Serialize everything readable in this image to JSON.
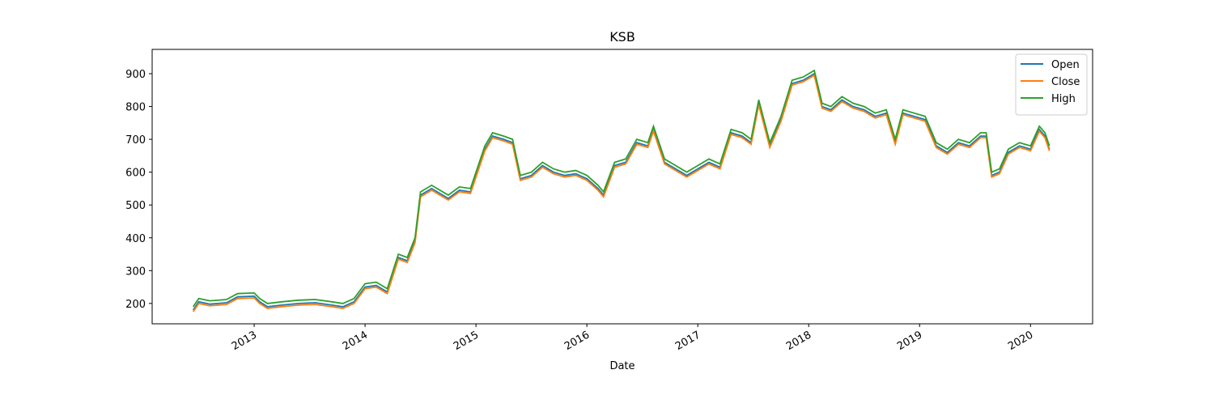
{
  "chart_data": {
    "type": "line",
    "title": "KSB",
    "xlabel": "Date",
    "x": [
      2012.45,
      2012.5,
      2012.6,
      2012.75,
      2012.85,
      2013.0,
      2013.05,
      2013.12,
      2013.25,
      2013.4,
      2013.55,
      2013.7,
      2013.8,
      2013.9,
      2014.0,
      2014.1,
      2014.2,
      2014.3,
      2014.38,
      2014.45,
      2014.5,
      2014.6,
      2014.75,
      2014.85,
      2014.95,
      2015.02,
      2015.08,
      2015.15,
      2015.25,
      2015.33,
      2015.4,
      2015.5,
      2015.6,
      2015.7,
      2015.8,
      2015.9,
      2016.0,
      2016.1,
      2016.15,
      2016.25,
      2016.35,
      2016.45,
      2016.55,
      2016.6,
      2016.7,
      2016.8,
      2016.9,
      2017.0,
      2017.1,
      2017.2,
      2017.3,
      2017.4,
      2017.48,
      2017.55,
      2017.65,
      2017.75,
      2017.85,
      2017.95,
      2018.05,
      2018.12,
      2018.2,
      2018.3,
      2018.4,
      2018.5,
      2018.6,
      2018.7,
      2018.78,
      2018.85,
      2018.95,
      2019.05,
      2019.15,
      2019.25,
      2019.35,
      2019.45,
      2019.55,
      2019.6,
      2019.65,
      2019.72,
      2019.8,
      2019.9,
      2020.0,
      2020.08,
      2020.13,
      2020.17
    ],
    "series": [
      {
        "name": "Open",
        "color": "#1f77b4",
        "values": [
          180,
          205,
          198,
          202,
          220,
          222,
          205,
          190,
          195,
          200,
          202,
          195,
          190,
          205,
          250,
          255,
          235,
          340,
          330,
          390,
          530,
          550,
          520,
          545,
          540,
          610,
          670,
          710,
          700,
          690,
          580,
          590,
          620,
          600,
          590,
          595,
          580,
          550,
          530,
          620,
          630,
          690,
          680,
          730,
          630,
          610,
          590,
          610,
          630,
          615,
          720,
          710,
          690,
          810,
          680,
          760,
          870,
          880,
          900,
          800,
          790,
          820,
          800,
          790,
          770,
          780,
          690,
          780,
          770,
          760,
          680,
          660,
          690,
          680,
          710,
          710,
          590,
          600,
          660,
          680,
          670,
          730,
          710,
          670
        ]
      },
      {
        "name": "Close",
        "color": "#ff7f0e",
        "values": [
          175,
          200,
          193,
          197,
          215,
          217,
          200,
          185,
          190,
          195,
          197,
          190,
          185,
          200,
          245,
          250,
          230,
          335,
          325,
          385,
          525,
          545,
          515,
          540,
          535,
          605,
          665,
          705,
          695,
          685,
          575,
          585,
          615,
          595,
          585,
          590,
          575,
          545,
          525,
          615,
          625,
          685,
          675,
          725,
          625,
          605,
          585,
          605,
          625,
          610,
          715,
          705,
          685,
          805,
          675,
          755,
          865,
          875,
          895,
          795,
          785,
          815,
          795,
          785,
          765,
          775,
          685,
          775,
          765,
          755,
          675,
          655,
          685,
          675,
          705,
          705,
          585,
          595,
          655,
          675,
          665,
          725,
          705,
          665
        ]
      },
      {
        "name": "High",
        "color": "#2ca02c",
        "values": [
          190,
          215,
          208,
          212,
          230,
          232,
          215,
          200,
          205,
          210,
          212,
          205,
          200,
          215,
          260,
          265,
          245,
          350,
          340,
          400,
          540,
          560,
          530,
          555,
          550,
          620,
          680,
          720,
          710,
          700,
          590,
          600,
          630,
          610,
          600,
          605,
          590,
          560,
          540,
          630,
          640,
          700,
          690,
          740,
          640,
          620,
          600,
          620,
          640,
          625,
          730,
          720,
          700,
          820,
          690,
          770,
          880,
          890,
          910,
          810,
          800,
          830,
          810,
          800,
          780,
          790,
          700,
          790,
          780,
          770,
          690,
          670,
          700,
          690,
          720,
          720,
          600,
          610,
          670,
          690,
          680,
          740,
          720,
          680
        ]
      }
    ],
    "xlim": [
      2012.08,
      2020.56
    ],
    "xticks": [
      2013,
      2014,
      2015,
      2016,
      2017,
      2018,
      2019,
      2020
    ],
    "ylim": [
      138,
      974
    ],
    "yticks": [
      200,
      300,
      400,
      500,
      600,
      700,
      800,
      900
    ],
    "legend": "upper right"
  }
}
